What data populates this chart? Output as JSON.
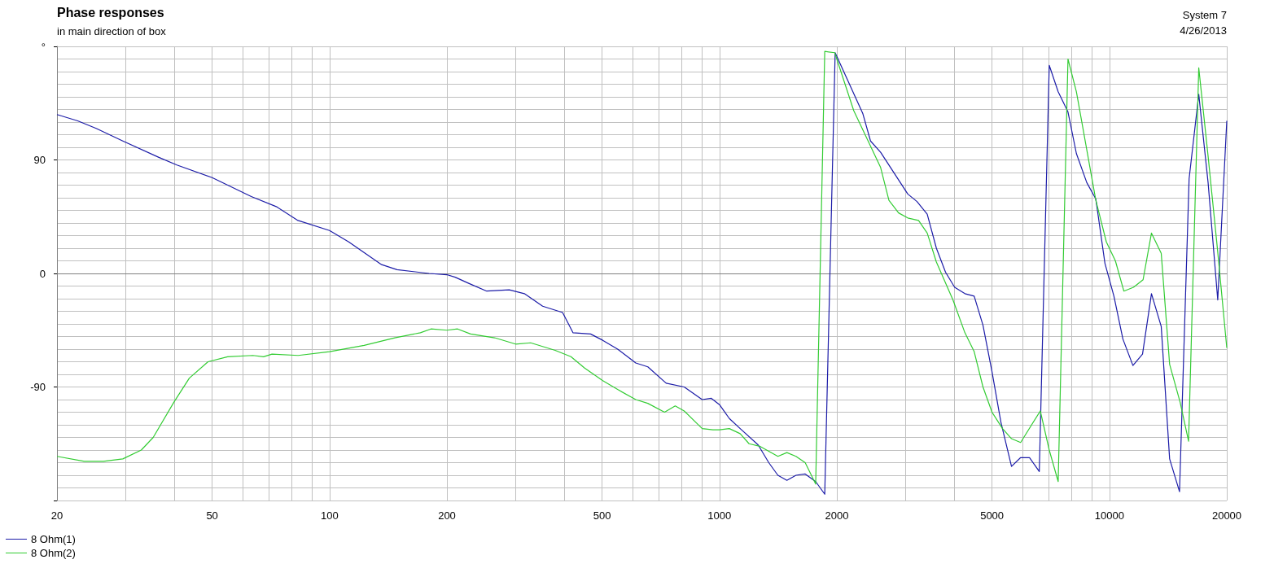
{
  "chart_data": {
    "type": "line",
    "title": "Phase responses",
    "subtitle": "in main direction of box",
    "annotations": [
      "System 7",
      "4/26/2013"
    ],
    "log": "x",
    "grid": true,
    "legend": "bottom left",
    "xlim": [
      20,
      20000
    ],
    "xticks": [
      20,
      50,
      100,
      200,
      500,
      1000,
      2000,
      5000,
      10000,
      20000
    ],
    "ylim": [
      -180,
      180
    ],
    "yticks": [
      {
        "value": -180,
        "label": null
      },
      -90,
      0,
      90,
      {
        "value": 180,
        "label": "°"
      }
    ],
    "series": [
      {
        "name": "8 Ohm(1)",
        "color": "#1c1ca8",
        "x": [
          20,
          22.6,
          25.2,
          29.5,
          36.5,
          40.6,
          50,
          63,
          73,
          83,
          100,
          112,
          136,
          149,
          180,
          200,
          210,
          228,
          253,
          289,
          316,
          352,
          396,
          421,
          467,
          502,
          548,
          610,
          655,
          730,
          812,
          903,
          953,
          1000,
          1060,
          1130,
          1257,
          1338,
          1412,
          1489,
          1571,
          1659,
          1765,
          1862,
          1980,
          2330,
          2440,
          2590,
          3040,
          3210,
          3410,
          3600,
          3800,
          4010,
          4260,
          4500,
          4740,
          5000,
          5270,
          5610,
          5920,
          6240,
          6610,
          7010,
          7390,
          7830,
          8230,
          8750,
          9230,
          9740,
          10270,
          10830,
          11490,
          12160,
          12820,
          13580,
          14270,
          15130,
          16010,
          16950,
          17910,
          18960,
          20000
        ],
        "values": [
          126,
          121,
          115,
          105,
          92,
          86,
          76,
          61,
          53,
          42,
          34,
          25,
          7,
          3,
          0,
          -1,
          -3,
          -8,
          -14,
          -13,
          -16,
          -26,
          -31,
          -47,
          -48,
          -53,
          -60,
          -71,
          -74,
          -87,
          -90,
          -100,
          -99,
          -104,
          -115,
          -123,
          -136,
          -150,
          -160,
          -164,
          -160,
          -159,
          -165,
          -175,
          175,
          127,
          105,
          96,
          63,
          57,
          47,
          20,
          1,
          -11,
          -16,
          -18,
          -41,
          -78,
          -118,
          -153,
          -146,
          -146,
          -157,
          165,
          144,
          128,
          95,
          72,
          59,
          8,
          -18,
          -52,
          -73,
          -64,
          -16,
          -42,
          -147,
          -173,
          75,
          142,
          72,
          -21,
          121
        ]
      },
      {
        "name": "8 Ohm(2)",
        "color": "#33cc33",
        "x": [
          20,
          23.5,
          26.3,
          29.5,
          32.9,
          35.3,
          39.9,
          43.7,
          48.8,
          54.8,
          63.6,
          67.7,
          71.2,
          83.1,
          100,
          122.7,
          147,
          171,
          182,
          200,
          213,
          230,
          265,
          300,
          328,
          379,
          416,
          451,
          502,
          548,
          610,
          655,
          723,
          770,
          812,
          903,
          962,
          1000,
          1060,
          1130,
          1191,
          1268,
          1338,
          1412,
          1489,
          1571,
          1659,
          1765,
          1862,
          1975,
          2210,
          2330,
          2590,
          2720,
          2880,
          3040,
          3240,
          3410,
          3600,
          3970,
          4260,
          4500,
          4740,
          5000,
          5320,
          5610,
          5920,
          6650,
          7010,
          7390,
          7830,
          8230,
          9230,
          9820,
          10360,
          10890,
          11530,
          12200,
          12820,
          13580,
          14270,
          15180,
          15960,
          16950,
          17910,
          18960,
          20000
        ],
        "values": [
          -145,
          -149,
          -149,
          -147,
          -140,
          -130,
          -102,
          -83,
          -70,
          -66,
          -65,
          -66,
          -64,
          -65,
          -62,
          -57,
          -51,
          -47,
          -44,
          -45,
          -44,
          -48,
          -51,
          -56,
          -55,
          -61,
          -66,
          -75,
          -85,
          -92,
          -100,
          -103,
          -110,
          -105,
          -109,
          -123,
          -124,
          -124,
          -123,
          -127,
          -135,
          -137,
          -141,
          -145,
          -142,
          -145,
          -150,
          -167,
          176,
          175,
          129,
          114,
          84,
          58,
          48,
          44,
          42,
          32,
          9,
          -21,
          -47,
          -62,
          -90,
          -110,
          -123,
          -131,
          -134,
          -109,
          -140,
          -165,
          170,
          144,
          58,
          25,
          10,
          -14,
          -11,
          -5,
          32,
          16,
          -72,
          -102,
          -133,
          163,
          93,
          17,
          -59
        ]
      }
    ]
  }
}
